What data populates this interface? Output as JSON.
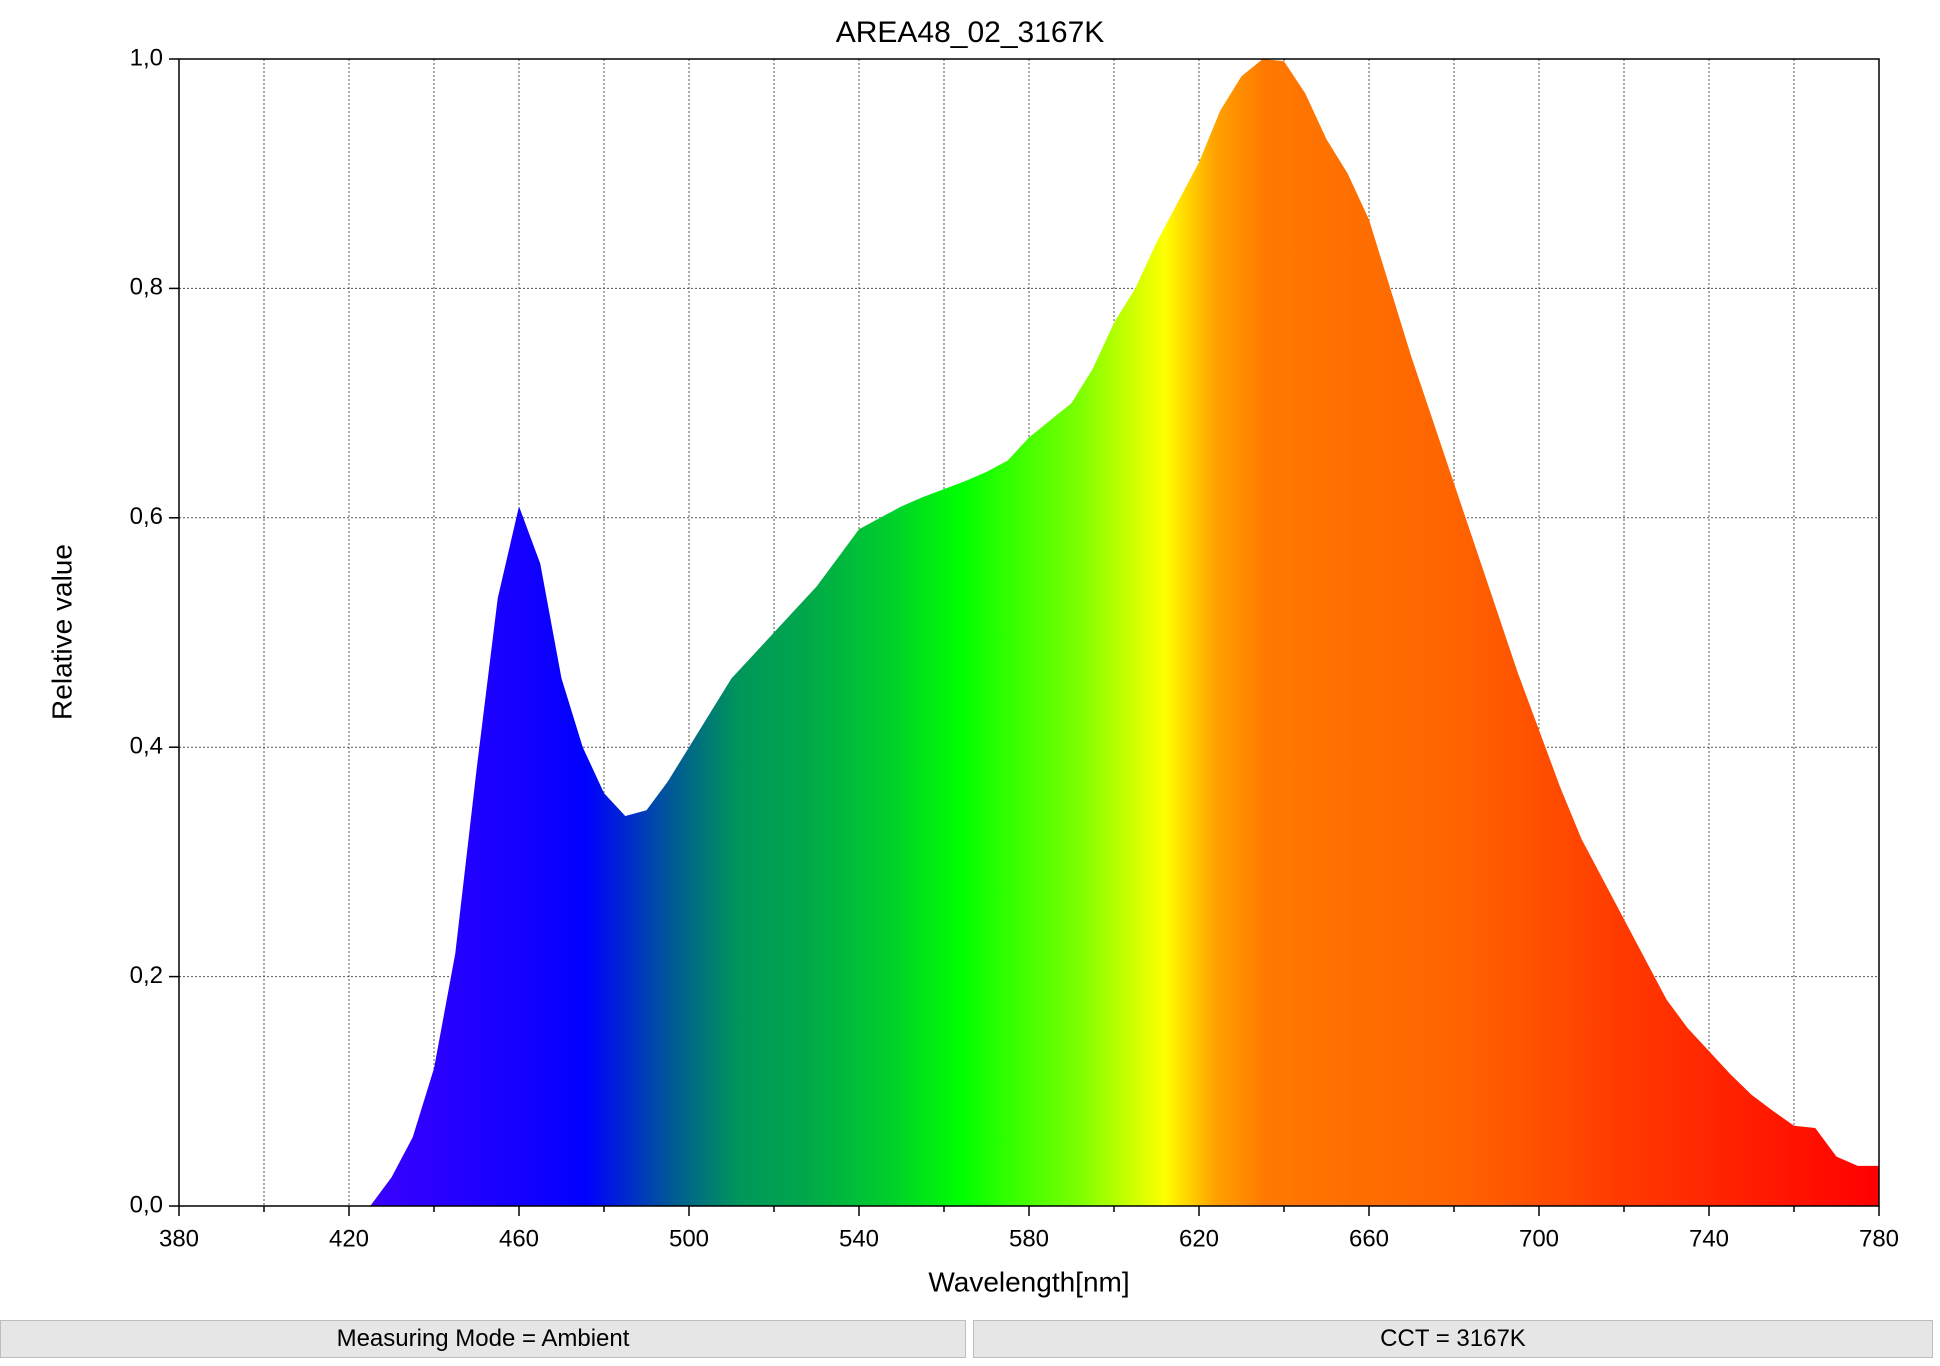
{
  "chart_data": {
    "type": "area",
    "title": "AREA48_02_3167K",
    "x_label": "Wavelength[nm]",
    "y_label": "Relative value",
    "x": [
      425,
      430,
      435,
      440,
      445,
      450,
      455,
      460,
      465,
      470,
      475,
      480,
      485,
      490,
      495,
      500,
      505,
      510,
      515,
      520,
      525,
      530,
      535,
      540,
      545,
      550,
      555,
      560,
      565,
      570,
      575,
      580,
      585,
      590,
      595,
      600,
      605,
      610,
      615,
      620,
      625,
      630,
      635,
      640,
      645,
      650,
      655,
      660,
      665,
      670,
      675,
      680,
      685,
      690,
      695,
      700,
      705,
      710,
      715,
      720,
      725,
      730,
      735,
      740,
      745,
      750,
      755,
      760,
      765,
      770,
      775,
      780
    ],
    "values": [
      0,
      0.025,
      0.06,
      0.12,
      0.22,
      0.38,
      0.53,
      0.61,
      0.56,
      0.46,
      0.4,
      0.36,
      0.34,
      0.345,
      0.37,
      0.4,
      0.43,
      0.46,
      0.48,
      0.5,
      0.52,
      0.54,
      0.565,
      0.59,
      0.6,
      0.61,
      0.618,
      0.625,
      0.632,
      0.64,
      0.65,
      0.67,
      0.685,
      0.7,
      0.73,
      0.77,
      0.8,
      0.84,
      0.875,
      0.91,
      0.955,
      0.985,
      1.0,
      0.998,
      0.97,
      0.93,
      0.9,
      0.86,
      0.8,
      0.74,
      0.685,
      0.63,
      0.575,
      0.52,
      0.465,
      0.415,
      0.365,
      0.32,
      0.285,
      0.25,
      0.215,
      0.18,
      0.155,
      0.135,
      0.115,
      0.097,
      0.083,
      0.07,
      0.068,
      0.043,
      0.035,
      0.035
    ],
    "xlim": [
      380,
      780
    ],
    "xticks": [
      380,
      420,
      460,
      500,
      540,
      580,
      620,
      660,
      700,
      740,
      780
    ],
    "ylim": [
      0,
      1
    ],
    "yticks": [
      {
        "value": 0,
        "label": "0,0"
      },
      {
        "value": 0.2,
        "label": "0,2"
      },
      {
        "value": 0.4,
        "label": "0,4"
      },
      {
        "value": 0.6,
        "label": "0,6"
      },
      {
        "value": 0.8,
        "label": "0,8"
      },
      {
        "value": 1,
        "label": "1,0"
      }
    ],
    "grid": true
  },
  "status": [
    "Measuring Mode = Ambient",
    "CCT = 3167K"
  ]
}
